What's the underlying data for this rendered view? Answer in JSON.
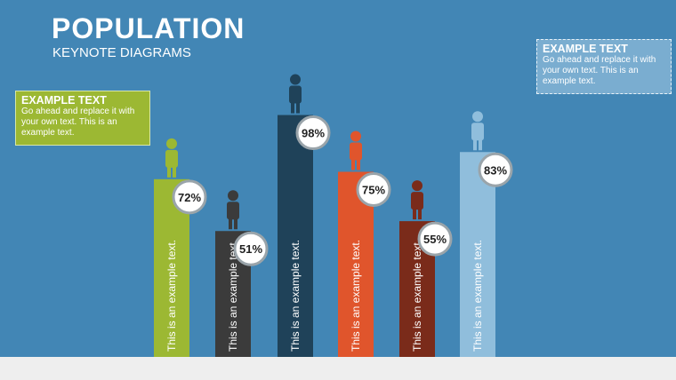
{
  "title": "POPULATION",
  "subtitle": "KEYNOTE DIAGRAMS",
  "callouts": [
    {
      "heading": "EXAMPLE TEXT",
      "body": "Go ahead and replace it with your own text. This is an example text."
    },
    {
      "heading": "EXAMPLE TEXT",
      "body": "Go ahead and replace it with your own text. This is an example text."
    }
  ],
  "chart_data": {
    "type": "bar",
    "categories": [
      "This is an example text.",
      "This is an example text.",
      "This is an example text.",
      "This is an example text.",
      "This is an example text.",
      "This is an example text."
    ],
    "values": [
      72,
      51,
      98,
      75,
      55,
      83
    ],
    "value_labels": [
      "72%",
      "51%",
      "98%",
      "75%",
      "55%",
      "83%"
    ],
    "colors": [
      "#9cb833",
      "#3b3b3b",
      "#1f4259",
      "#e0552c",
      "#7a2b1a",
      "#90bedc"
    ]
  }
}
